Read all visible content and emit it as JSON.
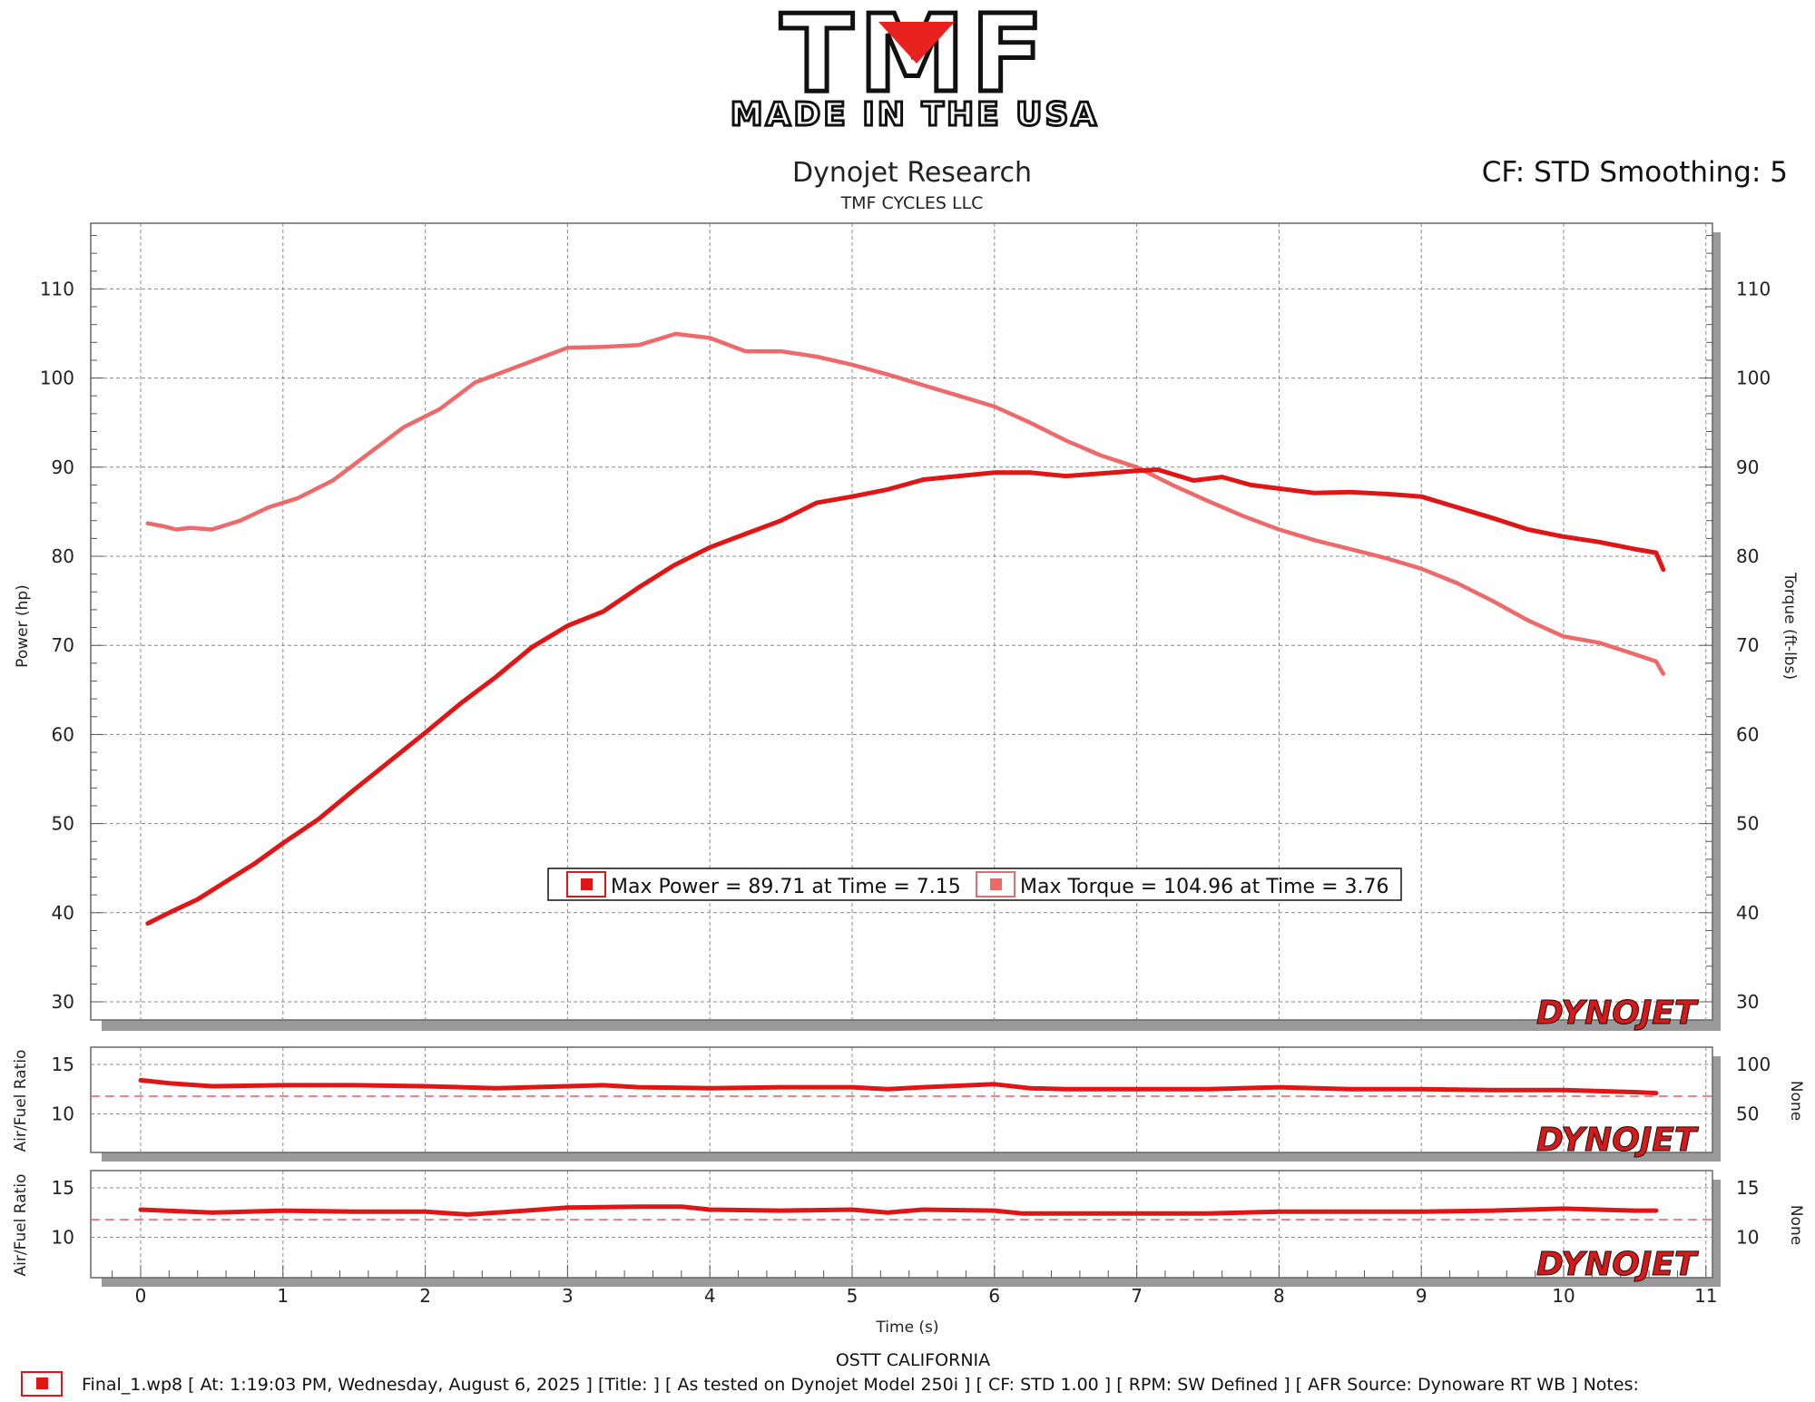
{
  "logo": {
    "brand": "TMF",
    "tagline": "MADE IN THE USA"
  },
  "header": {
    "title": "Dynojet Research",
    "subtitle": "TMF CYCLES LLC",
    "cf_smoothing": "CF: STD Smoothing: 5"
  },
  "watermark": "DYNOJET",
  "colors": {
    "power": "#e01616",
    "torque": "#ee6a6a",
    "grid": "#8a8a8a",
    "frame": "#666666"
  },
  "chart_data": [
    {
      "type": "line",
      "title": "Dynojet Research",
      "subtitle": "TMF CYCLES LLC",
      "xlabel": "",
      "ylabel": "Power (hp)",
      "y2label": "Torque (ft-lbs)",
      "xlim": [
        -0.35,
        11
      ],
      "ylim": [
        29,
        117
      ],
      "xticks": [
        0,
        1,
        2,
        3,
        4,
        5,
        6,
        7,
        8,
        9,
        10,
        11
      ],
      "yticks": [
        30,
        40,
        50,
        60,
        70,
        80,
        90,
        100,
        110
      ],
      "grid": true,
      "series": [
        {
          "name": "Power",
          "color": "#e01616",
          "x": [
            0.05,
            0.2,
            0.4,
            0.6,
            0.8,
            1.0,
            1.25,
            1.5,
            1.75,
            2.0,
            2.25,
            2.5,
            2.75,
            3.0,
            3.25,
            3.5,
            3.75,
            4.0,
            4.25,
            4.5,
            4.75,
            5.0,
            5.25,
            5.5,
            5.75,
            6.0,
            6.25,
            6.5,
            6.75,
            7.0,
            7.15,
            7.4,
            7.6,
            7.8,
            8.0,
            8.25,
            8.5,
            8.75,
            9.0,
            9.25,
            9.5,
            9.75,
            10.0,
            10.25,
            10.5,
            10.65,
            10.7
          ],
          "values": [
            38.8,
            40.0,
            41.5,
            43.5,
            45.5,
            47.8,
            50.5,
            53.8,
            57.0,
            60.2,
            63.5,
            66.5,
            69.8,
            72.2,
            73.8,
            76.5,
            79.0,
            81.0,
            82.5,
            84.0,
            86.0,
            86.7,
            87.5,
            88.6,
            89.0,
            89.4,
            89.4,
            89.0,
            89.3,
            89.6,
            89.71,
            88.5,
            88.9,
            88.0,
            87.6,
            87.1,
            87.2,
            87.0,
            86.7,
            85.5,
            84.3,
            83.0,
            82.2,
            81.6,
            80.8,
            80.4,
            78.5
          ]
        },
        {
          "name": "Torque",
          "color": "#ee6a6a",
          "x": [
            0.05,
            0.15,
            0.25,
            0.35,
            0.5,
            0.7,
            0.9,
            1.1,
            1.35,
            1.6,
            1.85,
            2.1,
            2.35,
            2.6,
            2.85,
            3.0,
            3.25,
            3.5,
            3.76,
            4.0,
            4.25,
            4.5,
            4.75,
            5.0,
            5.25,
            5.5,
            5.75,
            6.0,
            6.25,
            6.5,
            6.75,
            7.0,
            7.25,
            7.5,
            7.75,
            8.0,
            8.25,
            8.5,
            8.75,
            9.0,
            9.25,
            9.5,
            9.75,
            10.0,
            10.25,
            10.5,
            10.65,
            10.7
          ],
          "values": [
            83.7,
            83.4,
            83.0,
            83.2,
            83.0,
            84.0,
            85.5,
            86.5,
            88.5,
            91.5,
            94.5,
            96.5,
            99.5,
            101.0,
            102.5,
            103.4,
            103.5,
            103.7,
            104.96,
            104.5,
            103.0,
            103.0,
            102.4,
            101.5,
            100.4,
            99.2,
            98.0,
            96.8,
            95.0,
            93.0,
            91.3,
            90.0,
            88.0,
            86.2,
            84.5,
            83.0,
            81.8,
            80.8,
            79.8,
            78.6,
            77.0,
            75.0,
            72.8,
            71.0,
            70.3,
            69.0,
            68.2,
            66.8
          ]
        }
      ],
      "annotations": {
        "max_power": "Max Power = 89.71 at Time = 7.15",
        "max_torque": "Max Torque = 104.96 at Time = 3.76"
      }
    },
    {
      "type": "line",
      "ylabel": "Air/Fuel Ratio",
      "y2label": "None",
      "yticks": [
        10,
        15
      ],
      "y2ticks": [
        50,
        100
      ],
      "ylim": [
        7.5,
        16.5
      ],
      "grid": true,
      "series": [
        {
          "name": "Air/Fuel Ratio",
          "color": "#e01616",
          "x": [
            0.0,
            0.2,
            0.5,
            1.0,
            1.5,
            2.0,
            2.5,
            3.0,
            3.25,
            3.5,
            4.0,
            4.5,
            5.0,
            5.25,
            5.5,
            6.0,
            6.25,
            6.5,
            7.0,
            7.5,
            8.0,
            8.5,
            9.0,
            9.5,
            10.0,
            10.5,
            10.65
          ],
          "values": [
            13.4,
            13.1,
            12.8,
            12.9,
            12.9,
            12.8,
            12.6,
            12.8,
            12.9,
            12.7,
            12.6,
            12.7,
            12.7,
            12.5,
            12.7,
            13.0,
            12.6,
            12.5,
            12.5,
            12.5,
            12.7,
            12.5,
            12.5,
            12.4,
            12.4,
            12.2,
            12.1
          ]
        }
      ]
    },
    {
      "type": "line",
      "ylabel": "Air/Fuel Ratio",
      "y2label": "None",
      "yticks": [
        10,
        15
      ],
      "y2ticks": [
        10,
        15
      ],
      "ylim": [
        7.5,
        16.5
      ],
      "xlabel": "Time (s)",
      "xticks": [
        0,
        1,
        2,
        3,
        4,
        5,
        6,
        7,
        8,
        9,
        10,
        11
      ],
      "grid": true,
      "series": [
        {
          "name": "Air/Fuel Ratio",
          "color": "#e01616",
          "x": [
            0.0,
            0.5,
            1.0,
            1.5,
            2.0,
            2.3,
            2.6,
            3.0,
            3.5,
            3.8,
            4.0,
            4.5,
            5.0,
            5.25,
            5.5,
            6.0,
            6.2,
            6.5,
            7.0,
            7.5,
            8.0,
            8.5,
            9.0,
            9.5,
            10.0,
            10.5,
            10.65
          ],
          "values": [
            12.8,
            12.5,
            12.7,
            12.6,
            12.6,
            12.3,
            12.6,
            13.0,
            13.1,
            13.1,
            12.8,
            12.7,
            12.8,
            12.5,
            12.8,
            12.7,
            12.4,
            12.4,
            12.4,
            12.4,
            12.6,
            12.6,
            12.6,
            12.7,
            12.9,
            12.7,
            12.7
          ]
        }
      ]
    }
  ],
  "site": "OSTT CALIFORNIA",
  "footer": "Final_1.wp8 [ At: 1:19:03 PM, Wednesday, August 6, 2025 ] [Title: ]  [ As tested on Dynojet Model 250i ] [ CF: STD 1.00 ] [ RPM: SW Defined ] [ AFR Source: Dynoware RT WB ] Notes:"
}
